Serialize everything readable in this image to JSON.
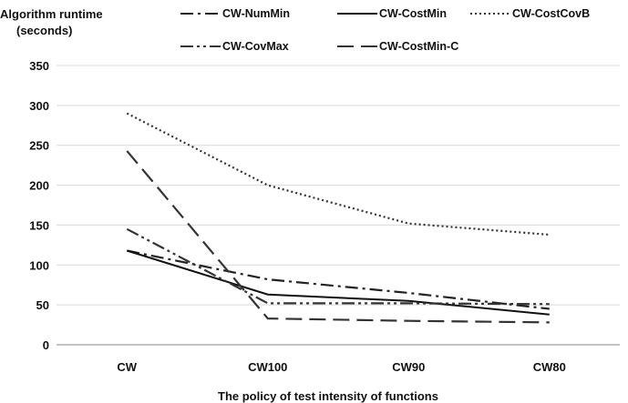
{
  "chart_data": {
    "type": "line",
    "title": "",
    "ylabel_line1": "Algorithm runtime",
    "ylabel_line2": "(seconds)",
    "xlabel": "The policy  of test intensity of functions",
    "categories": [
      "CW",
      "CW100",
      "CW90",
      "CW80"
    ],
    "ylim": [
      0,
      350
    ],
    "yticks": [
      0,
      50,
      100,
      150,
      200,
      250,
      300,
      350
    ],
    "grid": true,
    "legend_position": "top",
    "series": [
      {
        "name": "CW-NumMin",
        "style": "dashdot",
        "color": "#222222",
        "values": [
          118,
          82,
          65,
          45
        ]
      },
      {
        "name": "CW-CostMin",
        "style": "solid",
        "color": "#111111",
        "values": [
          118,
          63,
          55,
          38
        ]
      },
      {
        "name": "CW-CostCovB",
        "style": "dotted",
        "color": "#333333",
        "values": [
          290,
          200,
          152,
          138
        ]
      },
      {
        "name": "CW-CovMax",
        "style": "dashdotdot",
        "color": "#333333",
        "values": [
          145,
          52,
          52,
          51
        ]
      },
      {
        "name": "CW-CostMin-C",
        "style": "longdash",
        "color": "#333333",
        "values": [
          243,
          33,
          30,
          28
        ]
      }
    ]
  }
}
